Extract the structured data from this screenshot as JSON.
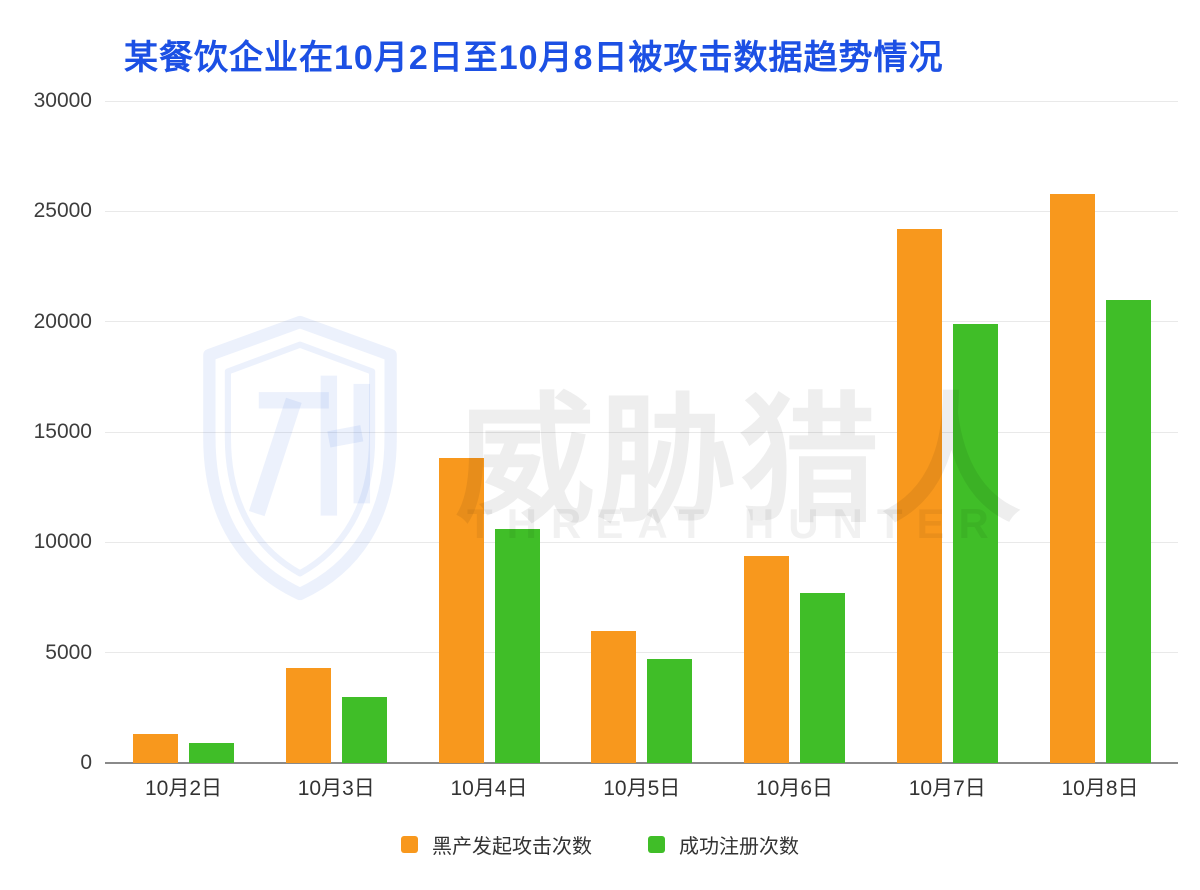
{
  "title": "某餐饮企业在10月2日至10月8日被攻击数据趋势情况",
  "title_color": "#1C50E4",
  "watermark": {
    "cn": "威胁猎人",
    "en": "THREAT HUNTER",
    "logo": "threat-hunter-shield",
    "shield_color": "rgba(47,99,227,0.09)"
  },
  "chart_data": {
    "type": "bar",
    "title": "某餐饮企业在10月2日至10月8日被攻击数据趋势情况",
    "categories": [
      "10月2日",
      "10月3日",
      "10月4日",
      "10月5日",
      "10月6日",
      "10月7日",
      "10月8日"
    ],
    "series": [
      {
        "name": "黑产发起攻击次数",
        "color": "#F8981D",
        "values": [
          1300,
          4300,
          13800,
          6000,
          9400,
          24200,
          25800
        ]
      },
      {
        "name": "成功注册次数",
        "color": "#40BE28",
        "values": [
          900,
          3000,
          10600,
          4700,
          7700,
          19900,
          21000
        ]
      }
    ],
    "ylim": [
      0,
      30000
    ],
    "yticks": [
      0,
      5000,
      10000,
      15000,
      20000,
      25000,
      30000
    ],
    "xlabel": "",
    "ylabel": "",
    "grid": true,
    "legend_position": "bottom",
    "colors": {
      "gridline": "#e9e9e9",
      "baseline": "#8a8a8a",
      "y_tick_text": "#3d3d3d",
      "x_tick_text": "#333333"
    }
  }
}
